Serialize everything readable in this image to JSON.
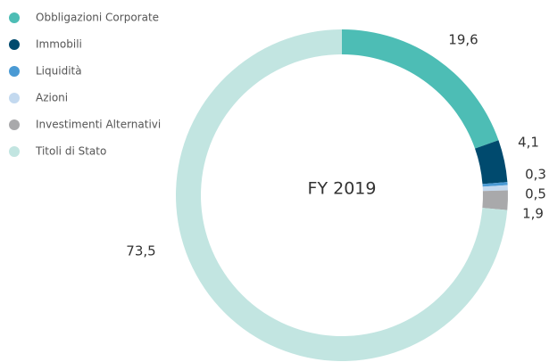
{
  "chart_data": {
    "type": "donut",
    "center_label": "FY 2019",
    "categories": [
      "Obbligazioni Corporate",
      "Immobili",
      "Liquidità",
      "Azioni",
      "Investimenti Alternativi",
      "Titoli di Stato"
    ],
    "values": [
      19.6,
      4.1,
      0.3,
      0.5,
      1.9,
      73.5
    ],
    "value_labels": [
      "19,6",
      "4,1",
      "0,3",
      "0,5",
      "1,9",
      "73,5"
    ],
    "colors": [
      "#4dbdb5",
      "#004a6e",
      "#4a9ad4",
      "#c3d9ef",
      "#a9a9ab",
      "#c2e5e1"
    ]
  }
}
